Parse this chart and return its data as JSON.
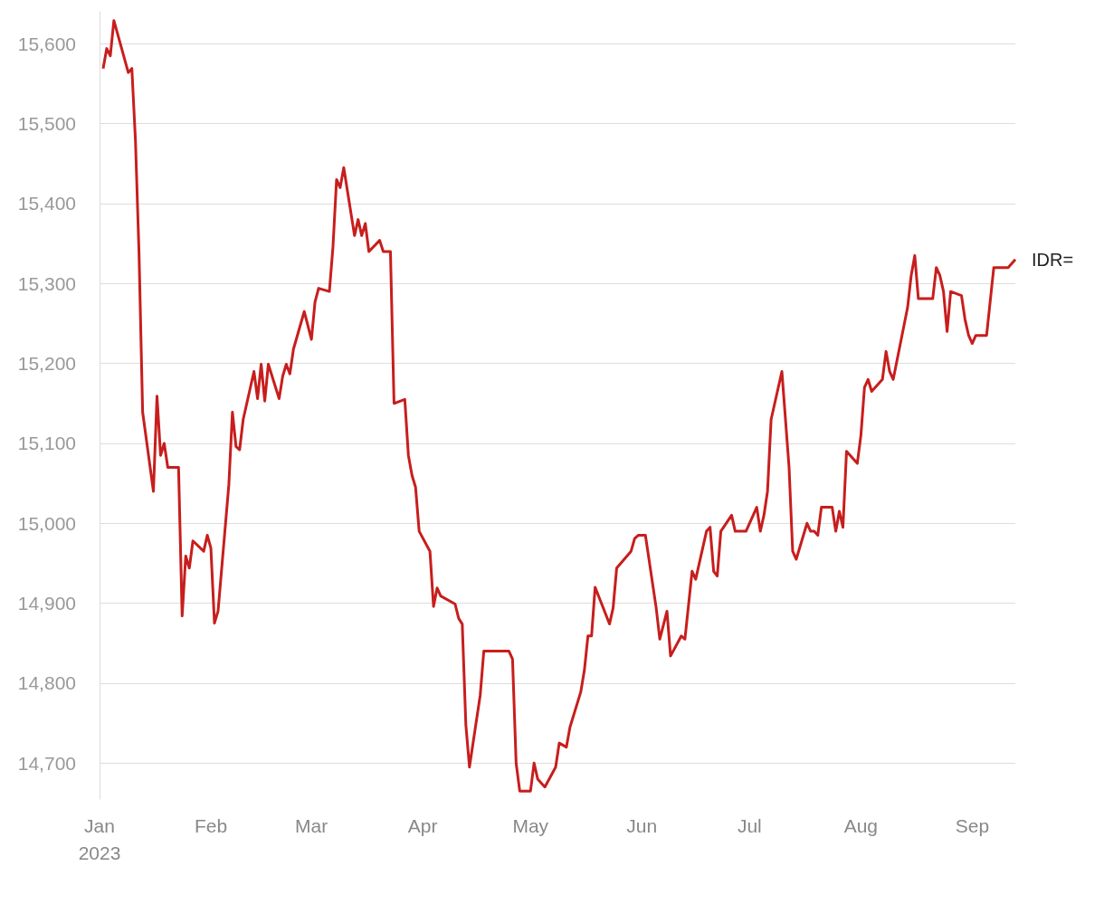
{
  "chart_data": {
    "type": "line",
    "x": [
      "2023-01-02",
      "2023-01-03",
      "2023-01-04",
      "2023-01-05",
      "2023-01-09",
      "2023-01-10",
      "2023-01-11",
      "2023-01-12",
      "2023-01-13",
      "2023-01-16",
      "2023-01-17",
      "2023-01-18",
      "2023-01-19",
      "2023-01-20",
      "2023-01-23",
      "2023-01-24",
      "2023-01-25",
      "2023-01-26",
      "2023-01-27",
      "2023-01-30",
      "2023-01-31",
      "2023-02-01",
      "2023-02-02",
      "2023-02-03",
      "2023-02-06",
      "2023-02-07",
      "2023-02-08",
      "2023-02-09",
      "2023-02-10",
      "2023-02-13",
      "2023-02-14",
      "2023-02-15",
      "2023-02-16",
      "2023-02-17",
      "2023-02-20",
      "2023-02-21",
      "2023-02-22",
      "2023-02-23",
      "2023-02-24",
      "2023-02-27",
      "2023-03-01",
      "2023-03-02",
      "2023-03-03",
      "2023-03-06",
      "2023-03-07",
      "2023-03-08",
      "2023-03-09",
      "2023-03-10",
      "2023-03-13",
      "2023-03-14",
      "2023-03-15",
      "2023-03-16",
      "2023-03-17",
      "2023-03-20",
      "2023-03-21",
      "2023-03-23",
      "2023-03-24",
      "2023-03-27",
      "2023-03-28",
      "2023-03-29",
      "2023-03-30",
      "2023-03-31",
      "2023-04-03",
      "2023-04-04",
      "2023-04-05",
      "2023-04-06",
      "2023-04-10",
      "2023-04-11",
      "2023-04-12",
      "2023-04-13",
      "2023-04-14",
      "2023-04-17",
      "2023-04-18",
      "2023-04-25",
      "2023-04-26",
      "2023-04-27",
      "2023-04-28",
      "2023-05-01",
      "2023-05-02",
      "2023-05-03",
      "2023-05-05",
      "2023-05-08",
      "2023-05-09",
      "2023-05-11",
      "2023-05-12",
      "2023-05-15",
      "2023-05-16",
      "2023-05-17",
      "2023-05-18",
      "2023-05-19",
      "2023-05-23",
      "2023-05-24",
      "2023-05-25",
      "2023-05-29",
      "2023-05-30",
      "2023-05-31",
      "2023-06-02",
      "2023-06-05",
      "2023-06-06",
      "2023-06-08",
      "2023-06-09",
      "2023-06-12",
      "2023-06-13",
      "2023-06-15",
      "2023-06-16",
      "2023-06-19",
      "2023-06-20",
      "2023-06-21",
      "2023-06-22",
      "2023-06-23",
      "2023-06-26",
      "2023-06-27",
      "2023-06-30",
      "2023-07-03",
      "2023-07-04",
      "2023-07-05",
      "2023-07-06",
      "2023-07-07",
      "2023-07-10",
      "2023-07-12",
      "2023-07-13",
      "2023-07-14",
      "2023-07-17",
      "2023-07-18",
      "2023-07-19",
      "2023-07-20",
      "2023-07-21",
      "2023-07-24",
      "2023-07-25",
      "2023-07-26",
      "2023-07-27",
      "2023-07-28",
      "2023-07-31",
      "2023-08-01",
      "2023-08-02",
      "2023-08-03",
      "2023-08-04",
      "2023-08-07",
      "2023-08-08",
      "2023-08-09",
      "2023-08-10",
      "2023-08-14",
      "2023-08-15",
      "2023-08-16",
      "2023-08-17",
      "2023-08-21",
      "2023-08-22",
      "2023-08-23",
      "2023-08-24",
      "2023-08-25",
      "2023-08-26",
      "2023-08-29",
      "2023-08-30",
      "2023-08-31",
      "2023-09-01",
      "2023-09-02",
      "2023-09-05",
      "2023-09-07",
      "2023-09-11",
      "2023-09-13"
    ],
    "series": [
      {
        "name": "IDR=",
        "color": "#c71e1d",
        "values": [
          15569,
          15594,
          15585,
          15629,
          15564,
          15569,
          15479,
          15337,
          15139,
          15040,
          15159,
          15085,
          15100,
          15070,
          15070,
          14884,
          14959,
          14944,
          14978,
          14965,
          14985,
          14969,
          14875,
          14890,
          15048,
          15139,
          15096,
          15092,
          15130,
          15190,
          15156,
          15199,
          15153,
          15199,
          15156,
          15184,
          15199,
          15187,
          15218,
          15265,
          15230,
          15277,
          15294,
          15290,
          15346,
          15430,
          15420,
          15445,
          15360,
          15380,
          15360,
          15375,
          15340,
          15354,
          15340,
          15340,
          15150,
          15155,
          15085,
          15060,
          15045,
          14990,
          14965,
          14896,
          14919,
          14909,
          14899,
          14881,
          14874,
          14748,
          14695,
          14785,
          14840,
          14840,
          14830,
          14700,
          14665,
          14665,
          14700,
          14680,
          14670,
          14695,
          14725,
          14720,
          14745,
          14789,
          14816,
          14859,
          14859,
          14920,
          14874,
          14894,
          14944,
          14965,
          14981,
          14985,
          14985,
          14894,
          14855,
          14890,
          14834,
          14859,
          14855,
          14940,
          14930,
          14990,
          14995,
          14940,
          14934,
          14990,
          15010,
          14990,
          14990,
          15020,
          14990,
          15010,
          15040,
          15130,
          15190,
          15070,
          14965,
          14955,
          15000,
          14990,
          14990,
          14985,
          15020,
          15020,
          14990,
          15015,
          14995,
          15090,
          15075,
          15110,
          15170,
          15180,
          15165,
          15180,
          15215,
          15190,
          15180,
          15270,
          15310,
          15335,
          15281,
          15281,
          15320,
          15310,
          15290,
          15240,
          15290,
          15285,
          15255,
          15235,
          15225,
          15235,
          15235,
          15320,
          15320,
          15330
        ]
      }
    ],
    "xlim": [
      "2023-01-01",
      "2023-09-13"
    ],
    "xticks": [
      {
        "value": "2023-01-01",
        "label": "Jan\n2023"
      },
      {
        "value": "2023-02-01",
        "label": "Feb"
      },
      {
        "value": "2023-03-01",
        "label": "Mar"
      },
      {
        "value": "2023-04-01",
        "label": "Apr"
      },
      {
        "value": "2023-05-01",
        "label": "May"
      },
      {
        "value": "2023-06-01",
        "label": "Jun"
      },
      {
        "value": "2023-07-01",
        "label": "Jul"
      },
      {
        "value": "2023-08-01",
        "label": "Aug"
      },
      {
        "value": "2023-09-01",
        "label": "Sep"
      }
    ],
    "yticks": [
      {
        "value": 14700,
        "label": "14,700"
      },
      {
        "value": 14800,
        "label": "14,800"
      },
      {
        "value": 14900,
        "label": "14,900"
      },
      {
        "value": 15000,
        "label": "15,000"
      },
      {
        "value": 15100,
        "label": "15,100"
      },
      {
        "value": 15200,
        "label": "15,200"
      },
      {
        "value": 15300,
        "label": "15,300"
      },
      {
        "value": 15400,
        "label": "15,400"
      },
      {
        "value": 15500,
        "label": "15,500"
      },
      {
        "value": 15600,
        "label": "15,600"
      }
    ],
    "ylim": [
      14655,
      15640
    ],
    "grid": "y",
    "marker": "none",
    "line_style": "solid",
    "legend": false
  }
}
